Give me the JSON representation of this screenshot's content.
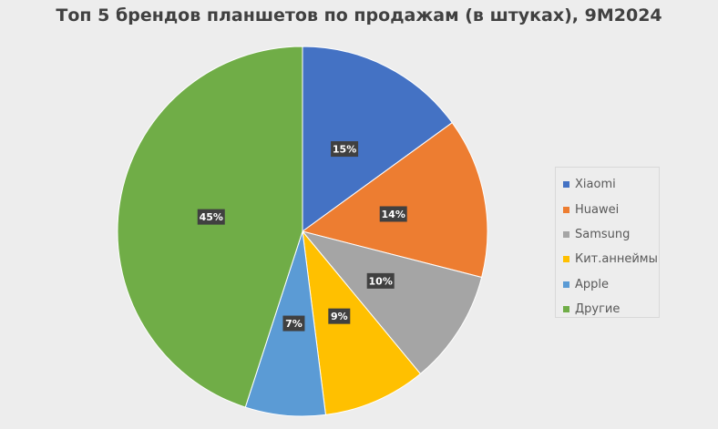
{
  "chart_data": {
    "type": "pie",
    "title": "Топ 5 брендов планшетов по продажам (в штуках), 9M2024",
    "categories": [
      "Xiaomi",
      "Huawei",
      "Samsung",
      "Кит.аннеймы",
      "Apple",
      "Другие"
    ],
    "values": [
      15,
      14,
      10,
      9,
      7,
      45
    ],
    "value_labels": [
      "15%",
      "14%",
      "10%",
      "9%",
      "7%",
      "45%"
    ],
    "colors": [
      "#4472c4",
      "#ed7d31",
      "#a5a5a5",
      "#ffc000",
      "#5b9bd5",
      "#70ad47"
    ],
    "legend_position": "right"
  }
}
